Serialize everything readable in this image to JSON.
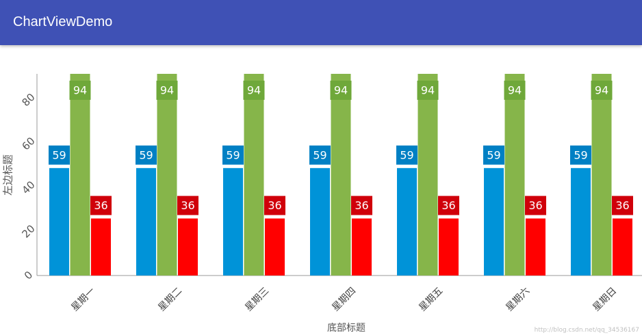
{
  "app": {
    "title": "ChartViewDemo"
  },
  "watermark": "http://blog.csdn.net/qq_34536167",
  "colors": {
    "appbar": "#3f51b5",
    "series_a": "#0093d8",
    "series_b": "#86b54a",
    "series_c": "#ff0000"
  },
  "chart_data": {
    "type": "bar",
    "xlabel": "底部标题",
    "ylabel": "左边标题",
    "ylim": [
      0,
      92
    ],
    "yticks": [
      0,
      20,
      40,
      60,
      80
    ],
    "grid": false,
    "categories": [
      "星期一",
      "星期二",
      "星期三",
      "星期四",
      "星期五",
      "星期六",
      "星期日"
    ],
    "series": [
      {
        "values": [
          59,
          59,
          59,
          59,
          59,
          59,
          59
        ],
        "color": "#0093d8",
        "label_color": "#0080c4"
      },
      {
        "values": [
          94,
          94,
          94,
          94,
          94,
          94,
          94
        ],
        "color": "#86b54a",
        "label_color": "#6fa83a"
      },
      {
        "values": [
          36,
          36,
          36,
          36,
          36,
          36,
          36
        ],
        "color": "#ff0000",
        "label_color": "#d0000a"
      }
    ]
  }
}
